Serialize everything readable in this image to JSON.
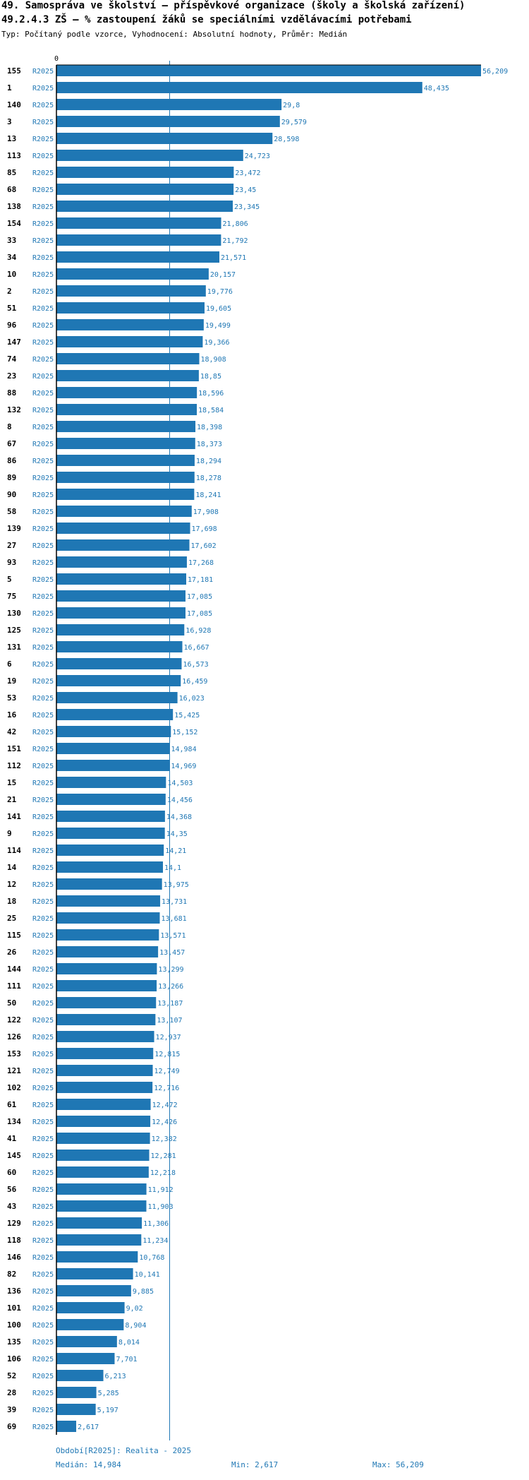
{
  "header": {
    "title": "49. Samospráva ve školství – příspěvkové organizace (školy a školská zařízení)",
    "subtitle": "49.2.4.3 ZŠ – % zastoupení žáků se speciálními vzdělávacími potřebami",
    "meta": "Typ: Počítaný podle vzorce, Vyhodnocení: Absolutní hodnoty, Průměr: Medián"
  },
  "footer": {
    "period": "Období[R2025]: Realita - 2025",
    "median": "Medián: 14,984",
    "min": "Min: 2,617",
    "max": "Max: 56,209"
  },
  "colors": {
    "bar": "#1f77b4",
    "text": "#1f77b4",
    "axis": "#000000"
  },
  "chart_data": {
    "type": "bar",
    "orientation": "horizontal",
    "axis_zero_label": "0",
    "series_label": "R2025",
    "median": 14.984,
    "xlim": [
      0,
      56.209
    ],
    "categories": [
      "155",
      "1",
      "140",
      "3",
      "13",
      "113",
      "85",
      "68",
      "138",
      "154",
      "33",
      "34",
      "10",
      "2",
      "51",
      "96",
      "147",
      "74",
      "23",
      "88",
      "132",
      "8",
      "67",
      "86",
      "89",
      "90",
      "58",
      "139",
      "27",
      "93",
      "5",
      "75",
      "130",
      "125",
      "131",
      "6",
      "19",
      "53",
      "16",
      "42",
      "151",
      "112",
      "15",
      "21",
      "141",
      "9",
      "114",
      "14",
      "12",
      "18",
      "25",
      "115",
      "26",
      "144",
      "111",
      "50",
      "122",
      "126",
      "153",
      "121",
      "102",
      "61",
      "134",
      "41",
      "145",
      "60",
      "56",
      "43",
      "129",
      "118",
      "146",
      "82",
      "136",
      "101",
      "100",
      "135",
      "106",
      "52",
      "28",
      "39",
      "69"
    ],
    "values": [
      56.209,
      48.435,
      29.8,
      29.579,
      28.598,
      24.723,
      23.472,
      23.45,
      23.345,
      21.806,
      21.792,
      21.571,
      20.157,
      19.776,
      19.605,
      19.499,
      19.366,
      18.908,
      18.85,
      18.596,
      18.584,
      18.398,
      18.373,
      18.294,
      18.278,
      18.241,
      17.908,
      17.698,
      17.602,
      17.268,
      17.181,
      17.085,
      17.085,
      16.928,
      16.667,
      16.573,
      16.459,
      16.023,
      15.425,
      15.152,
      14.984,
      14.969,
      14.503,
      14.456,
      14.368,
      14.35,
      14.21,
      14.1,
      13.975,
      13.731,
      13.681,
      13.571,
      13.457,
      13.299,
      13.266,
      13.187,
      13.107,
      12.937,
      12.815,
      12.749,
      12.716,
      12.472,
      12.426,
      12.382,
      12.281,
      12.218,
      11.912,
      11.903,
      11.306,
      11.234,
      10.768,
      10.141,
      9.885,
      9.02,
      8.904,
      8.014,
      7.701,
      6.213,
      5.285,
      5.197,
      2.617
    ],
    "labels": [
      "56,209",
      "48,435",
      "29,8",
      "29,579",
      "28,598",
      "24,723",
      "23,472",
      "23,45",
      "23,345",
      "21,806",
      "21,792",
      "21,571",
      "20,157",
      "19,776",
      "19,605",
      "19,499",
      "19,366",
      "18,908",
      "18,85",
      "18,596",
      "18,584",
      "18,398",
      "18,373",
      "18,294",
      "18,278",
      "18,241",
      "17,908",
      "17,698",
      "17,602",
      "17,268",
      "17,181",
      "17,085",
      "17,085",
      "16,928",
      "16,667",
      "16,573",
      "16,459",
      "16,023",
      "15,425",
      "15,152",
      "14,984",
      "14,969",
      "14,503",
      "14,456",
      "14,368",
      "14,35",
      "14,21",
      "14,1",
      "13,975",
      "13,731",
      "13,681",
      "13,571",
      "13,457",
      "13,299",
      "13,266",
      "13,187",
      "13,107",
      "12,937",
      "12,815",
      "12,749",
      "12,716",
      "12,472",
      "12,426",
      "12,382",
      "12,281",
      "12,218",
      "11,912",
      "11,903",
      "11,306",
      "11,234",
      "10,768",
      "10,141",
      "9,885",
      "9,02",
      "8,904",
      "8,014",
      "7,701",
      "6,213",
      "5,285",
      "5,197",
      "2,617"
    ]
  }
}
